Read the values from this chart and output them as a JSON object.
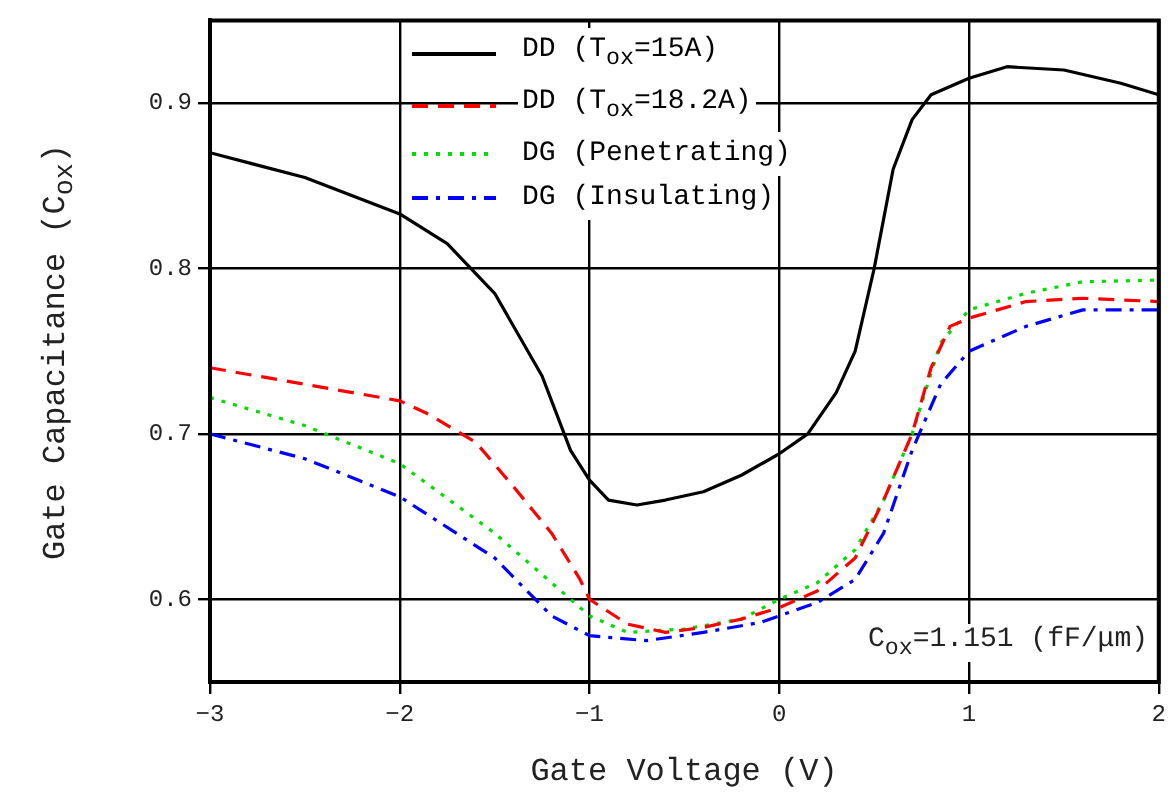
{
  "chart_data": {
    "type": "line",
    "xlabel": "Gate Voltage (V)",
    "ylabel": "Gate Capacitance (C$_{ox}$)",
    "xlim": [
      -3,
      2
    ],
    "xticks": [
      -3,
      -2,
      -1,
      0,
      1,
      2
    ],
    "ylim": [
      0.55,
      0.95
    ],
    "yticks": [
      0.6,
      0.7,
      0.8,
      0.9
    ],
    "grid": true,
    "legend": "top",
    "marker": "none",
    "annotations": [
      "C$_{ox}$=1.151 (fF/μm)"
    ],
    "series": [
      {
        "name": "DD (T$_{ox}$=15A)",
        "color": "#000000",
        "line_style": "solid",
        "x": [
          -3,
          -2.5,
          -2,
          -1.75,
          -1.5,
          -1.25,
          -1.1,
          -1,
          -0.9,
          -0.75,
          -0.6,
          -0.4,
          -0.2,
          0,
          0.15,
          0.3,
          0.4,
          0.5,
          0.6,
          0.7,
          0.8,
          1,
          1.2,
          1.5,
          1.8,
          2
        ],
        "values": [
          0.87,
          0.855,
          0.833,
          0.815,
          0.785,
          0.735,
          0.69,
          0.672,
          0.66,
          0.657,
          0.66,
          0.665,
          0.675,
          0.688,
          0.7,
          0.725,
          0.75,
          0.8,
          0.86,
          0.89,
          0.905,
          0.915,
          0.922,
          0.92,
          0.912,
          0.905
        ]
      },
      {
        "name": "DD (T$_{ox}$=18.2A)",
        "color": "#ff0000",
        "line_style": "dashed",
        "x": [
          -3,
          -2.5,
          -2,
          -1.85,
          -1.6,
          -1.4,
          -1.2,
          -1.05,
          -1,
          -0.8,
          -0.6,
          -0.4,
          -0.2,
          0,
          0.2,
          0.4,
          0.55,
          0.7,
          0.8,
          0.9,
          1,
          1.3,
          1.6,
          2
        ],
        "values": [
          0.74,
          0.73,
          0.72,
          0.712,
          0.695,
          0.668,
          0.64,
          0.612,
          0.6,
          0.585,
          0.58,
          0.583,
          0.588,
          0.595,
          0.605,
          0.625,
          0.66,
          0.7,
          0.74,
          0.765,
          0.77,
          0.78,
          0.782,
          0.78
        ]
      },
      {
        "name": "DG (Penetrating)",
        "color": "#00dd00",
        "line_style": "dotted",
        "x": [
          -3,
          -2.5,
          -2,
          -1.5,
          -1.25,
          -1,
          -0.8,
          -0.5,
          -0.2,
          0,
          0.2,
          0.4,
          0.55,
          0.7,
          0.85,
          1,
          1.3,
          1.6,
          2
        ],
        "values": [
          0.722,
          0.705,
          0.682,
          0.64,
          0.615,
          0.59,
          0.58,
          0.582,
          0.588,
          0.6,
          0.61,
          0.63,
          0.66,
          0.7,
          0.755,
          0.775,
          0.785,
          0.792,
          0.793
        ]
      },
      {
        "name": "DG (Insulating)",
        "color": "#0000ff",
        "line_style": "dashdot",
        "x": [
          -3,
          -2.5,
          -2,
          -1.5,
          -1.2,
          -1,
          -0.7,
          -0.4,
          -0.1,
          0,
          0.2,
          0.4,
          0.55,
          0.7,
          0.85,
          1,
          1.3,
          1.6,
          2
        ],
        "values": [
          0.7,
          0.685,
          0.662,
          0.625,
          0.59,
          0.578,
          0.575,
          0.58,
          0.586,
          0.59,
          0.598,
          0.612,
          0.64,
          0.69,
          0.73,
          0.75,
          0.765,
          0.775,
          0.775
        ]
      }
    ]
  }
}
